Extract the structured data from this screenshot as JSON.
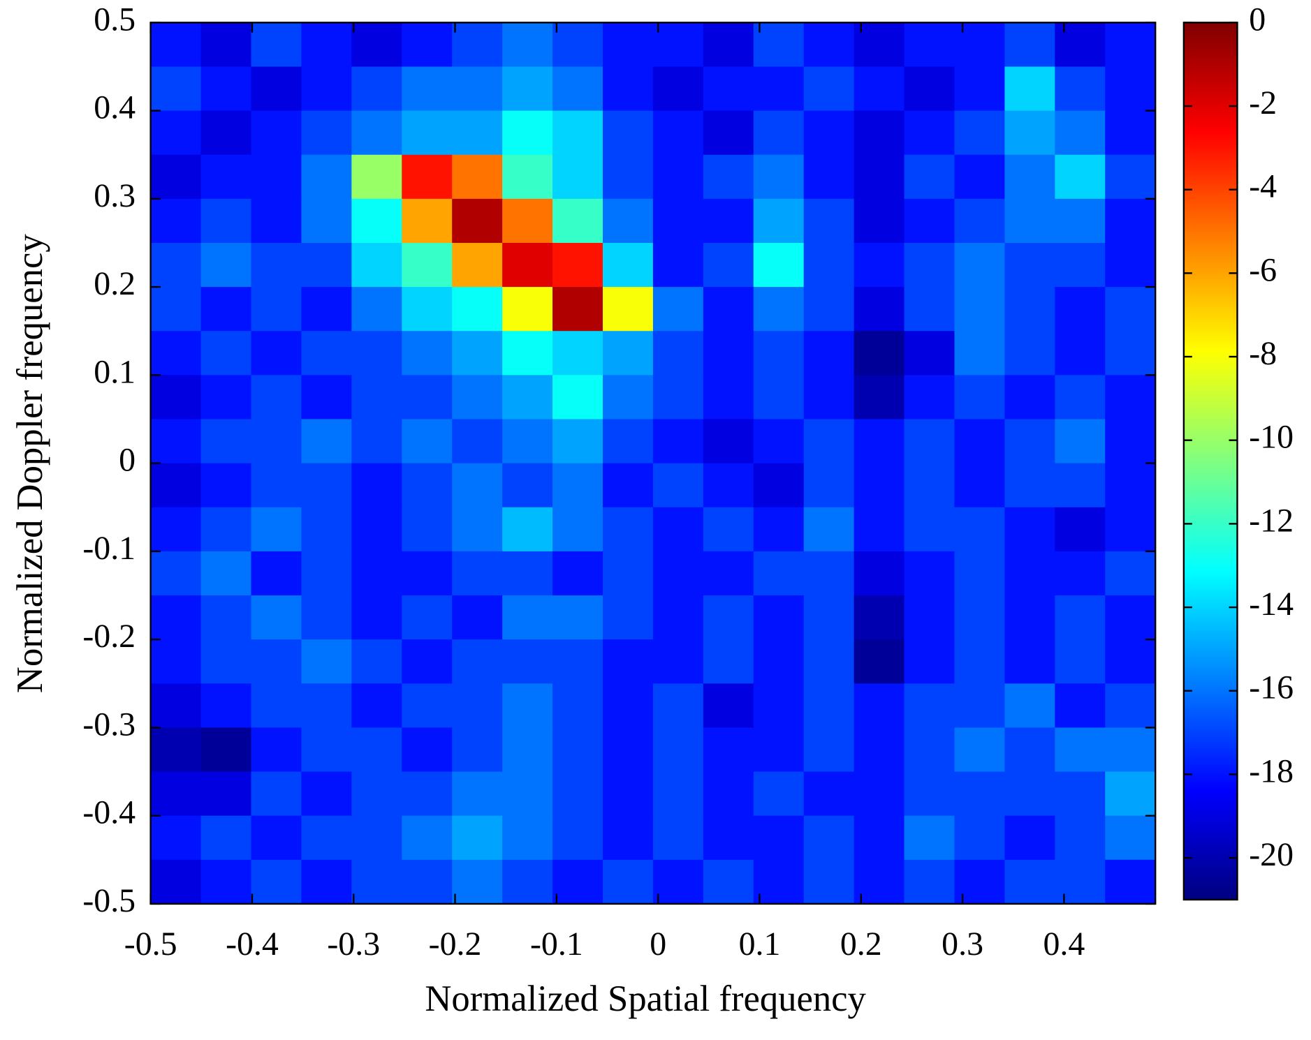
{
  "chart_data": {
    "type": "heatmap",
    "xlabel": "Normalized Spatial frequency",
    "ylabel": "Normalized Doppler frequency",
    "xlim": [
      -0.5,
      0.49
    ],
    "ylim": [
      -0.5,
      0.5
    ],
    "xticks": [
      -0.5,
      -0.4,
      -0.3,
      -0.2,
      -0.1,
      0,
      0.1,
      0.2,
      0.3,
      0.4
    ],
    "yticks": [
      0.5,
      0.4,
      0.3,
      0.2,
      0.1,
      0,
      -0.1,
      -0.2,
      -0.3,
      -0.4,
      -0.5
    ],
    "colormap": "jet",
    "clim": [
      -21,
      0
    ],
    "cticks": [
      0,
      -2,
      -4,
      -6,
      -8,
      -10,
      -12,
      -14,
      -16,
      -18,
      -20
    ],
    "values": [
      [
        -18,
        -19,
        -17,
        -18,
        -19,
        -18,
        -17,
        -16,
        -17,
        -18,
        -18,
        -19,
        -17,
        -18,
        -19,
        -18,
        -18,
        -17,
        -19,
        -18
      ],
      [
        -17,
        -18,
        -19,
        -18,
        -17,
        -16,
        -16,
        -15,
        -16,
        -18,
        -19,
        -18,
        -18,
        -17,
        -18,
        -19,
        -18,
        -14,
        -17,
        -18
      ],
      [
        -18,
        -19,
        -18,
        -17,
        -16,
        -15,
        -15,
        -13,
        -14,
        -17,
        -18,
        -19,
        -17,
        -18,
        -19,
        -18,
        -17,
        -15,
        -16,
        -18
      ],
      [
        -19,
        -18,
        -18,
        -16,
        -10,
        -3,
        -5,
        -12,
        -14,
        -17,
        -18,
        -17,
        -16,
        -18,
        -19,
        -17,
        -18,
        -16,
        -14,
        -17
      ],
      [
        -18,
        -17,
        -18,
        -16,
        -13,
        -6,
        -1,
        -5,
        -12,
        -16,
        -18,
        -18,
        -15,
        -17,
        -19,
        -18,
        -17,
        -16,
        -16,
        -18
      ],
      [
        -17,
        -16,
        -17,
        -17,
        -14,
        -12,
        -6,
        -2,
        -3,
        -14,
        -18,
        -17,
        -13,
        -17,
        -18,
        -17,
        -16,
        -17,
        -17,
        -18
      ],
      [
        -17,
        -18,
        -17,
        -18,
        -16,
        -14,
        -13,
        -8,
        -1,
        -8,
        -16,
        -18,
        -16,
        -17,
        -19,
        -17,
        -16,
        -17,
        -18,
        -17
      ],
      [
        -18,
        -17,
        -18,
        -17,
        -17,
        -16,
        -15,
        -13,
        -14,
        -15,
        -17,
        -18,
        -17,
        -18,
        -20.5,
        -19,
        -16,
        -17,
        -18,
        -17
      ],
      [
        -19,
        -18,
        -17,
        -18,
        -17,
        -17,
        -16,
        -15,
        -13,
        -16,
        -17,
        -18,
        -17,
        -18,
        -20,
        -18,
        -17,
        -18,
        -17,
        -18
      ],
      [
        -18,
        -17,
        -17,
        -16,
        -17,
        -16,
        -17,
        -16,
        -15,
        -17,
        -18,
        -19,
        -18,
        -17,
        -18,
        -17,
        -18,
        -17,
        -16,
        -18
      ],
      [
        -19,
        -18,
        -17,
        -17,
        -18,
        -17,
        -16,
        -17,
        -16,
        -18,
        -17,
        -18,
        -19,
        -17,
        -18,
        -17,
        -18,
        -17,
        -17,
        -18
      ],
      [
        -18,
        -17,
        -16,
        -17,
        -18,
        -17,
        -16,
        -14.5,
        -16,
        -17,
        -18,
        -17,
        -18,
        -16,
        -18,
        -17,
        -17,
        -18,
        -19,
        -18
      ],
      [
        -17,
        -16,
        -18,
        -17,
        -18,
        -18,
        -17,
        -17,
        -18,
        -17,
        -18,
        -18,
        -17,
        -17,
        -19,
        -18,
        -17,
        -18,
        -18,
        -17
      ],
      [
        -18,
        -17,
        -16,
        -17,
        -18,
        -17,
        -18,
        -16,
        -16,
        -17,
        -18,
        -17,
        -18,
        -17,
        -20,
        -18,
        -17,
        -18,
        -17,
        -18
      ],
      [
        -18,
        -17,
        -17,
        -16,
        -17,
        -18,
        -17,
        -17,
        -17,
        -18,
        -18,
        -17,
        -18,
        -17,
        -20.5,
        -18,
        -17,
        -18,
        -17,
        -18
      ],
      [
        -19,
        -18,
        -17,
        -17,
        -18,
        -17,
        -17,
        -16,
        -17,
        -18,
        -17,
        -19,
        -18,
        -17,
        -18,
        -17,
        -17,
        -16,
        -18,
        -17
      ],
      [
        -20,
        -20.5,
        -18,
        -17,
        -17,
        -18,
        -17,
        -16,
        -17,
        -18,
        -17,
        -18,
        -18,
        -17,
        -18,
        -17,
        -16,
        -17,
        -16,
        -16
      ],
      [
        -19,
        -19,
        -17,
        -18,
        -17,
        -17,
        -16,
        -16,
        -17,
        -18,
        -17,
        -18,
        -17,
        -18,
        -18,
        -17,
        -17,
        -17,
        -17,
        -15
      ],
      [
        -18,
        -17,
        -18,
        -17,
        -17,
        -16,
        -15,
        -16,
        -17,
        -18,
        -17,
        -18,
        -18,
        -17,
        -18,
        -16,
        -17,
        -18,
        -17,
        -16
      ],
      [
        -19,
        -18,
        -17,
        -18,
        -17,
        -17,
        -16,
        -17,
        -18,
        -17,
        -18,
        -17,
        -18,
        -17,
        -18,
        -17,
        -18,
        -17,
        -17,
        -18
      ]
    ]
  }
}
